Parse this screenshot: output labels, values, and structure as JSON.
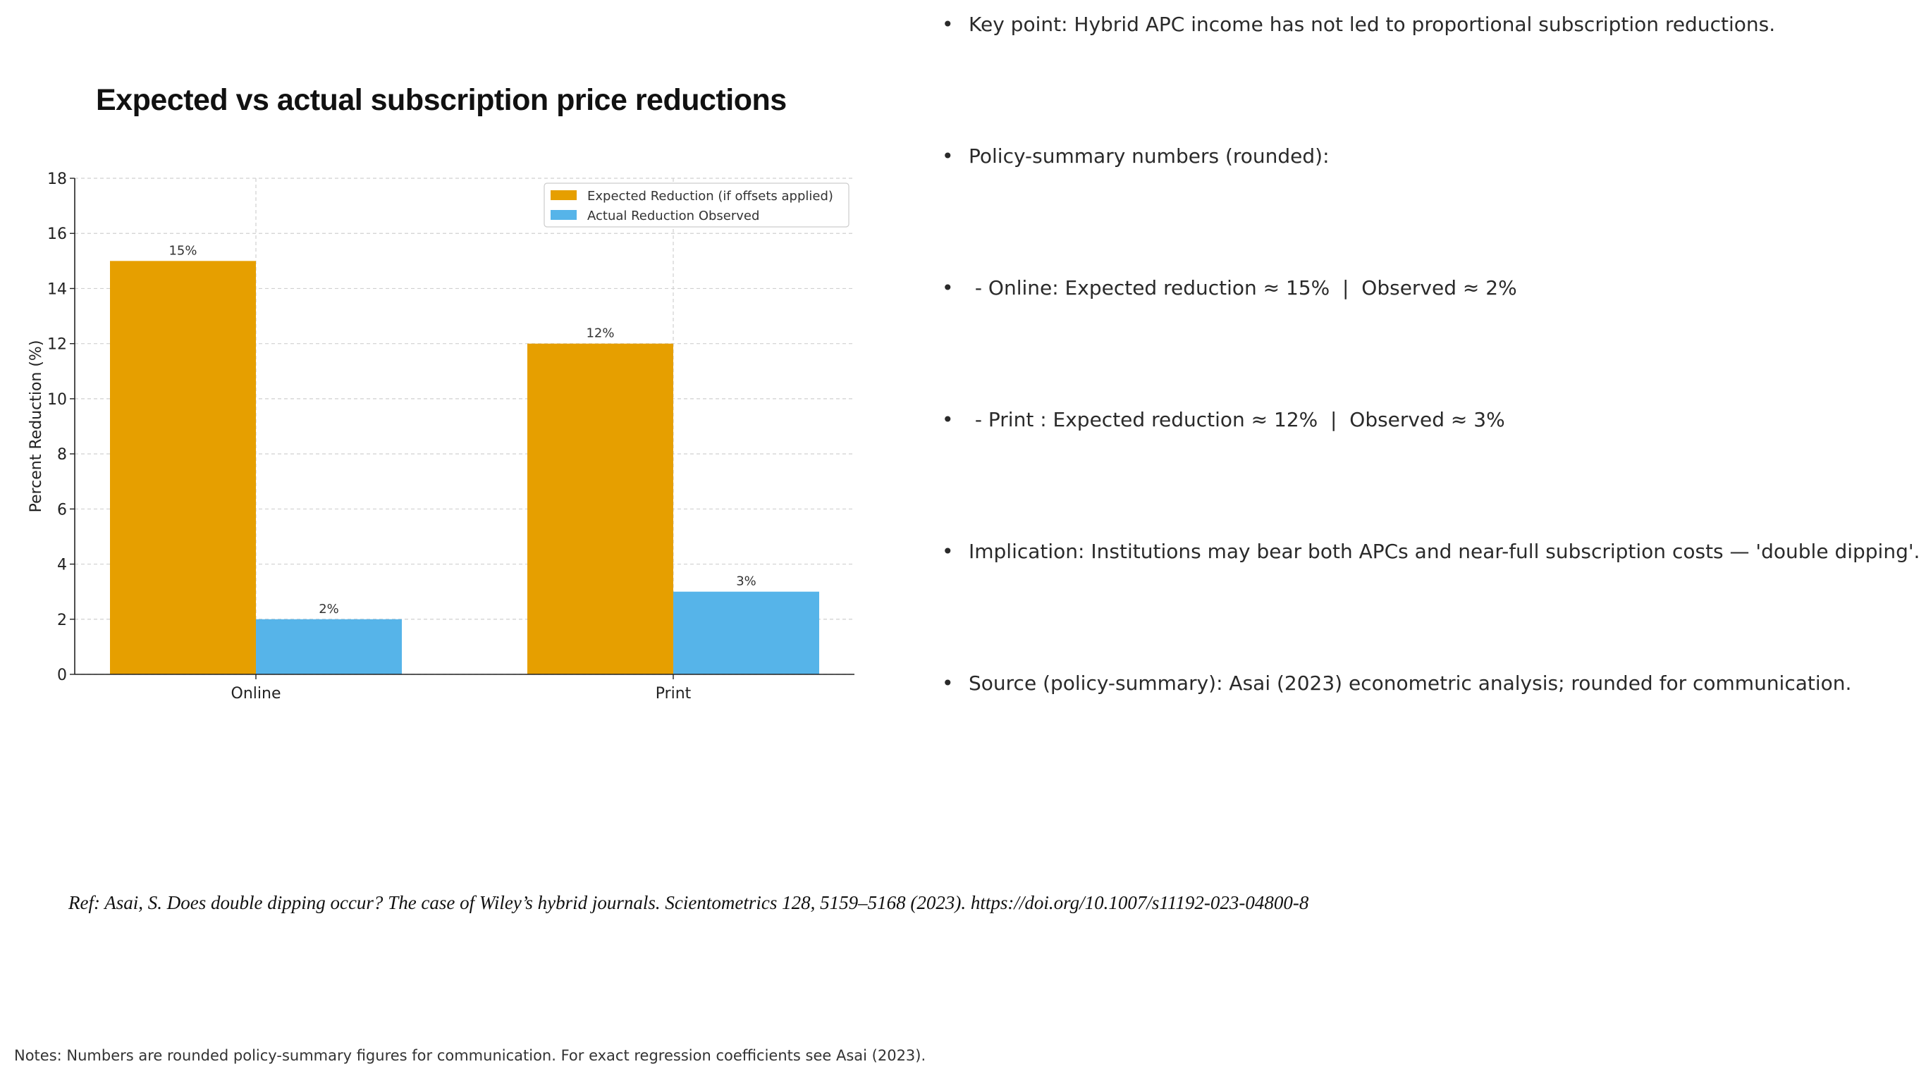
{
  "chart_data": {
    "type": "bar",
    "title": "Expected vs actual subscription price reductions",
    "xlabel": "",
    "ylabel": "Percent Reduction (%)",
    "ylim": [
      0,
      18
    ],
    "yticks": [
      0,
      2,
      4,
      6,
      8,
      10,
      12,
      14,
      16,
      18
    ],
    "grid": true,
    "legend_position": "top-right",
    "categories": [
      "Online",
      "Print"
    ],
    "series": [
      {
        "name": "Expected Reduction (if offsets applied)",
        "values": [
          15,
          12
        ],
        "labels": [
          "15%",
          "12%"
        ],
        "color": "#E69F00"
      },
      {
        "name": "Actual Reduction Observed",
        "values": [
          2,
          3
        ],
        "labels": [
          "2%",
          "3%"
        ],
        "color": "#56B4E9"
      }
    ]
  },
  "bullets": [
    "Key point: Hybrid APC income has not led to proportional subscription reductions.",
    "Policy-summary numbers (rounded):",
    " - Online: Expected reduction ≈ 15%  |  Observed ≈ 2%",
    " - Print : Expected reduction ≈ 12%  |  Observed ≈ 3%",
    "Implication: Institutions may bear both APCs and near-full subscription costs — 'double dipping'.",
    "Source (policy-summary): Asai (2023) econometric analysis; rounded for communication."
  ],
  "bullet_symbol": "•",
  "reference": "Ref: Asai, S. Does double dipping occur? The case of Wiley’s hybrid journals. Scientometrics 128, 5159–5168 (2023). https://doi.org/10.1007/s11192-023-04800-8",
  "notes": "Notes: Numbers are rounded policy-summary figures for communication. For exact regression coefficients see Asai (2023)."
}
